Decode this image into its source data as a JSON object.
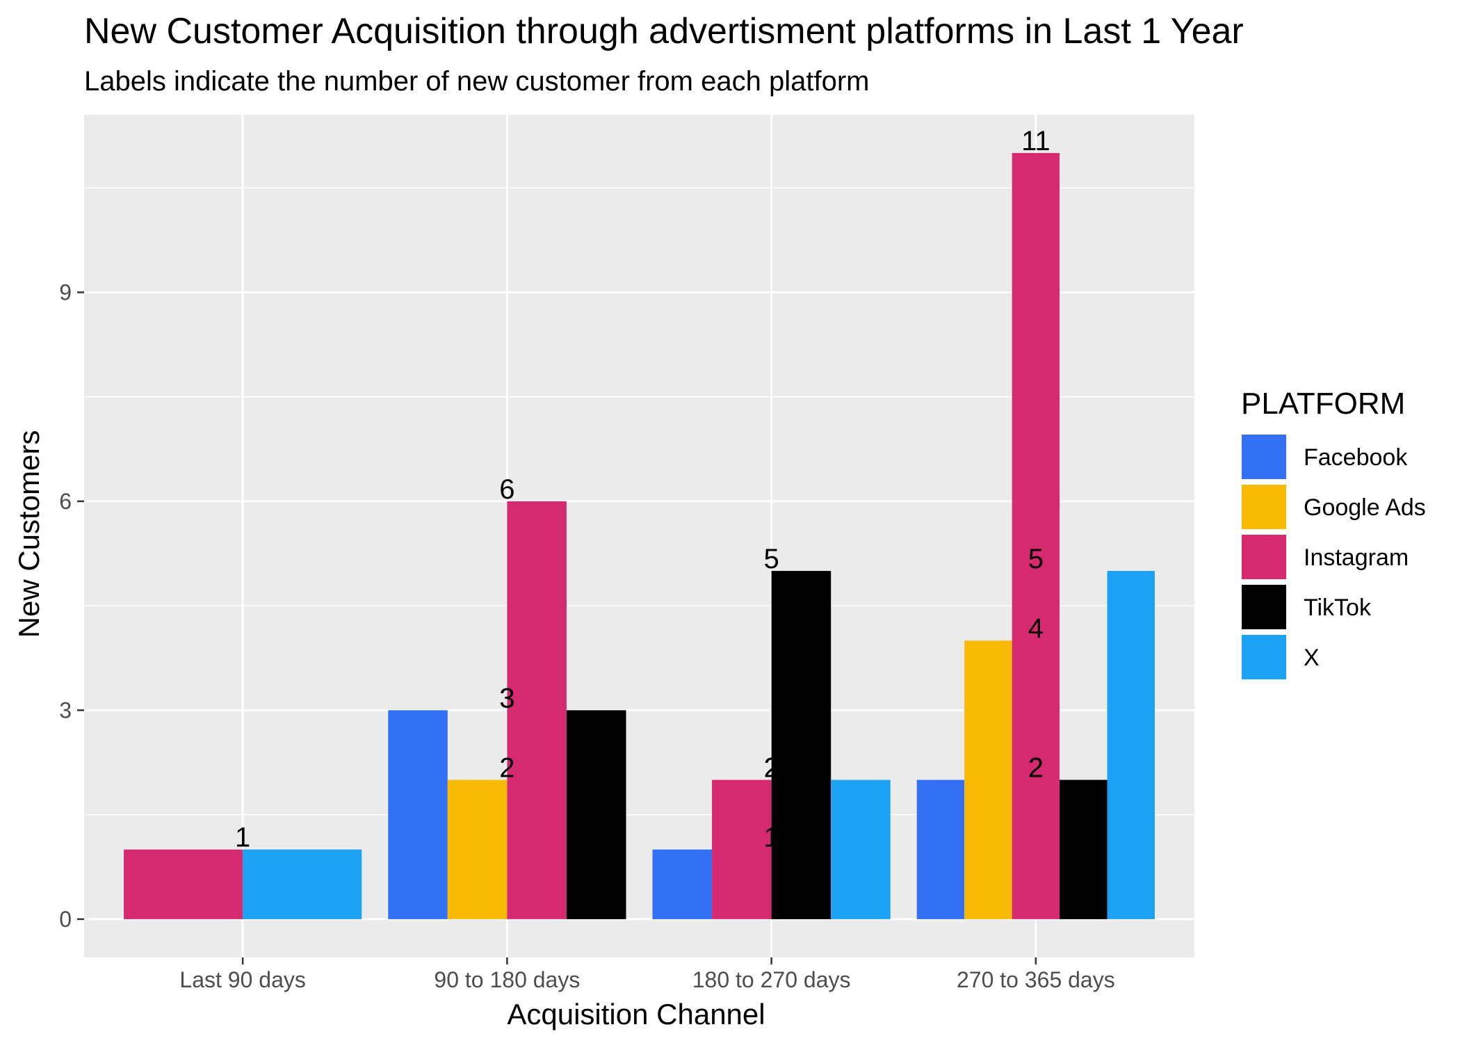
{
  "chart_data": {
    "type": "bar",
    "layout": "dodge",
    "title": "New Customer Acquisition through advertisment platforms in Last 1 Year",
    "subtitle": "Labels indicate the number of new customer from each platform",
    "xlabel": "Acquisition Channel",
    "ylabel": "New Customers",
    "ylim": [
      -0.55,
      11.55
    ],
    "yticks": [
      0,
      3,
      6,
      9
    ],
    "grid": true,
    "legend": {
      "title": "PLATFORM",
      "position": "right"
    },
    "categories": [
      "Last 90 days",
      "90 to 180 days",
      "180 to 270 days",
      "270 to 365 days"
    ],
    "series": [
      {
        "name": "Facebook",
        "color": "#3370F3",
        "values": [
          null,
          3,
          1,
          2
        ]
      },
      {
        "name": "Google Ads",
        "color": "#F8BA05",
        "values": [
          null,
          2,
          null,
          4
        ]
      },
      {
        "name": "Instagram",
        "color": "#D62A70",
        "values": [
          1,
          6,
          2,
          11
        ]
      },
      {
        "name": "TikTok",
        "color": "#000000",
        "values": [
          null,
          3,
          5,
          2
        ]
      },
      {
        "name": "X",
        "color": "#1DA1F2",
        "values": [
          1,
          null,
          2,
          5
        ]
      }
    ],
    "data_labels": [
      [
        "1"
      ],
      [
        "2",
        "3",
        "6",
        "3"
      ],
      [
        "1",
        "2",
        "2",
        "5"
      ],
      [
        "2",
        "4",
        "11",
        "2",
        "5"
      ]
    ]
  }
}
